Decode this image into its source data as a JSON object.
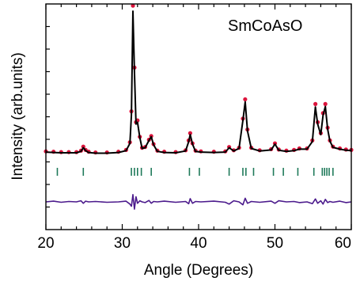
{
  "chart_data": {
    "type": "line",
    "title": "",
    "annotation": "SmCoAsO",
    "xlabel": "Angle (Degrees)",
    "ylabel": "Intensity (arb.units)",
    "xlim": [
      20,
      60
    ],
    "x_ticks": [
      "20",
      "30",
      "40",
      "50",
      "60"
    ],
    "y_ticks_labeled": false,
    "grid": false,
    "legend": "none",
    "colors": {
      "observed": "#dc143c",
      "calculated": "#000000",
      "bragg": "#1f7a5a",
      "difference": "#4b1a8c"
    },
    "series": [
      {
        "style": "markers",
        "role": "observed",
        "x": [
          20.0,
          21.0,
          22.0,
          23.0,
          24.0,
          24.6,
          24.9,
          25.2,
          25.6,
          26.5,
          28.0,
          29.5,
          30.5,
          31.0,
          31.2,
          31.4,
          31.6,
          31.8,
          32.0,
          32.3,
          32.6,
          33.0,
          33.5,
          33.8,
          34.1,
          34.6,
          35.5,
          37.0,
          38.3,
          38.7,
          38.9,
          39.2,
          39.6,
          40.3,
          42.0,
          43.5,
          44.0,
          44.6,
          45.3,
          45.8,
          46.1,
          46.4,
          46.9,
          48.0,
          49.5,
          50.0,
          50.5,
          51.5,
          52.5,
          53.2,
          54.2,
          54.9,
          55.3,
          55.6,
          56.0,
          56.3,
          56.6,
          56.9,
          57.2,
          57.6,
          58.5,
          59.3,
          60.0
        ],
        "y": [
          3.0,
          2.9,
          2.8,
          2.8,
          2.8,
          3.2,
          4.3,
          3.4,
          2.9,
          2.7,
          2.7,
          2.9,
          3.4,
          5.5,
          14.0,
          43.0,
          26.0,
          11.0,
          11.5,
          7.0,
          4.0,
          4.2,
          6.2,
          7.2,
          5.0,
          3.2,
          2.9,
          2.8,
          3.3,
          6.0,
          8.0,
          5.2,
          3.2,
          3.0,
          2.9,
          3.0,
          4.2,
          3.3,
          4.0,
          12.0,
          17.3,
          9.0,
          4.0,
          3.3,
          3.6,
          5.2,
          3.5,
          3.2,
          3.4,
          3.8,
          3.8,
          6.0,
          16.0,
          11.0,
          8.0,
          13.5,
          16.0,
          9.5,
          6.0,
          4.3,
          3.8,
          3.5,
          3.4
        ]
      },
      {
        "style": "line",
        "role": "calculated",
        "x": [
          20.0,
          21.0,
          22.0,
          23.0,
          24.0,
          24.6,
          24.9,
          25.2,
          25.6,
          26.5,
          28.0,
          29.5,
          30.5,
          31.0,
          31.2,
          31.4,
          31.6,
          31.8,
          32.0,
          32.3,
          32.6,
          33.0,
          33.5,
          33.8,
          34.1,
          34.6,
          35.5,
          37.0,
          38.3,
          38.7,
          38.9,
          39.2,
          39.6,
          40.3,
          42.0,
          43.5,
          44.0,
          44.6,
          45.3,
          45.8,
          46.1,
          46.4,
          46.9,
          48.0,
          49.5,
          50.0,
          50.5,
          51.5,
          52.5,
          53.2,
          54.2,
          54.9,
          55.3,
          55.6,
          56.0,
          56.3,
          56.6,
          56.9,
          57.2,
          57.6,
          58.5,
          59.3,
          60.0
        ],
        "y": [
          2.8,
          2.7,
          2.6,
          2.6,
          2.6,
          3.0,
          4.0,
          3.2,
          2.7,
          2.5,
          2.5,
          2.7,
          3.2,
          5.2,
          13.0,
          41.5,
          25.0,
          10.5,
          11.0,
          6.8,
          3.8,
          4.0,
          6.0,
          7.0,
          4.8,
          3.0,
          2.7,
          2.6,
          3.1,
          5.7,
          7.6,
          5.0,
          3.0,
          2.8,
          2.7,
          2.8,
          4.0,
          3.1,
          3.8,
          11.5,
          16.6,
          8.6,
          3.8,
          3.1,
          3.4,
          5.0,
          3.3,
          3.0,
          3.2,
          3.6,
          3.6,
          5.7,
          15.2,
          10.5,
          7.6,
          12.9,
          15.3,
          9.1,
          5.8,
          4.1,
          3.6,
          3.3,
          3.2
        ]
      },
      {
        "style": "ticks",
        "role": "bragg",
        "x": [
          21.5,
          24.9,
          31.2,
          31.6,
          32.0,
          32.5,
          33.8,
          38.8,
          40.1,
          44.0,
          45.8,
          46.2,
          47.2,
          49.8,
          51.1,
          53.0,
          55.1,
          56.2,
          56.5,
          56.8,
          57.1,
          57.6
        ]
      },
      {
        "style": "line",
        "role": "difference",
        "x": [
          20.0,
          21.0,
          22.0,
          23.0,
          24.0,
          24.6,
          24.9,
          25.2,
          25.6,
          26.5,
          28.0,
          29.5,
          30.5,
          31.0,
          31.2,
          31.4,
          31.6,
          31.8,
          32.0,
          32.3,
          32.6,
          33.0,
          33.5,
          33.8,
          34.1,
          34.6,
          35.5,
          37.0,
          38.3,
          38.7,
          38.9,
          39.2,
          39.6,
          40.3,
          42.0,
          43.5,
          44.0,
          44.6,
          45.3,
          45.8,
          46.1,
          46.4,
          46.9,
          48.0,
          49.5,
          50.0,
          50.5,
          51.5,
          52.5,
          53.2,
          54.2,
          54.9,
          55.3,
          55.6,
          56.0,
          56.3,
          56.6,
          56.9,
          57.2,
          57.6,
          58.5,
          59.3,
          60.0
        ],
        "y": [
          -15.0,
          -15.2,
          -14.9,
          -15.1,
          -15.0,
          -15.3,
          -14.6,
          -15.2,
          -15.0,
          -15.1,
          -14.9,
          -15.0,
          -15.2,
          -14.4,
          -13.8,
          -17.0,
          -13.0,
          -16.4,
          -14.6,
          -15.3,
          -15.0,
          -14.8,
          -15.4,
          -14.6,
          -15.1,
          -15.0,
          -15.2,
          -14.9,
          -15.1,
          -14.5,
          -15.9,
          -14.6,
          -15.1,
          -15.0,
          -15.2,
          -14.9,
          -14.4,
          -15.3,
          -15.0,
          -14.2,
          -16.0,
          -14.6,
          -15.1,
          -14.9,
          -15.2,
          -14.6,
          -15.3,
          -15.0,
          -15.1,
          -14.8,
          -15.0,
          -14.5,
          -15.8,
          -14.6,
          -15.3,
          -14.4,
          -15.7,
          -14.8,
          -15.1,
          -14.9,
          -15.2,
          -14.8,
          -15.0
        ]
      }
    ]
  }
}
